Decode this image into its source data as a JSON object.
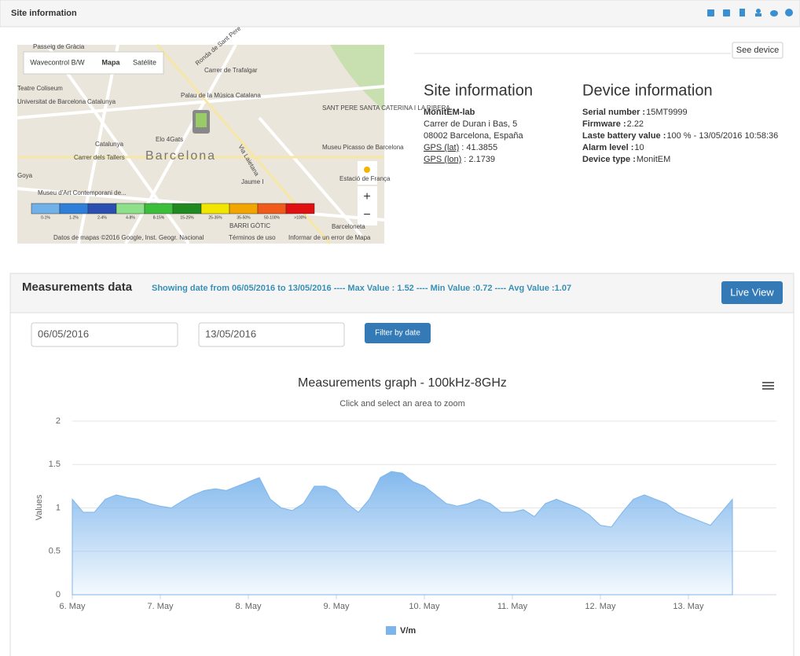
{
  "header": {
    "title": "Site information"
  },
  "map": {
    "controls": [
      "Wavecontrol B/W",
      "Mapa",
      "Satélite"
    ],
    "labels": [
      "Passeig de Gràcia",
      "Ronda de Sant Pere",
      "Carrer de Trafalgar",
      "Teatre Coliseum",
      "Universitat de Barcelona",
      "Catalunya",
      "Palau de la Música Catalana",
      "Elo 4Gats",
      "Catalunya",
      "Carrer dels Tallers",
      "Barcelona",
      "Via Laietana",
      "SANT PERE SANTA CATERINA I LA RIBERA",
      "Museu Picasso de Barcelona",
      "Goya",
      "Museu d'Art Contemporani de...",
      "Jaume I",
      "Estació de França",
      "BARRI GÒTIC",
      "Barceloneta"
    ],
    "scale": [
      "0-1%",
      "1-2%",
      "2-4%",
      "4-8%",
      "8-15%",
      "15-25%",
      "25-35%",
      "35-50%",
      "50-100%",
      ">100%"
    ],
    "attribution": "Datos de mapas ©2016 Google, Inst. Geogr. Nacional",
    "terms": "Términos de uso",
    "report": "Informar de un error de Mapa"
  },
  "see_device": "See device",
  "site": {
    "heading": "Site information",
    "name": "MonitEM-lab",
    "address": [
      "Carrer de Duran i Bas, 5",
      "08002 Barcelona, España"
    ],
    "gps": [
      {
        "label": "GPS (lat)",
        "value": ": 41.3855"
      },
      {
        "label": "GPS (lon)",
        "value": ": 2.1739"
      }
    ]
  },
  "device": {
    "heading": "Device information",
    "rows": [
      {
        "label": "Serial number :",
        "value": "15MT9999"
      },
      {
        "label": "Firmware :",
        "value": "2.22"
      },
      {
        "label": "Laste battery value :",
        "value": "100 % - 13/05/2016 10:58:36"
      },
      {
        "label": "Alarm level :",
        "value": "10"
      },
      {
        "label": "Device type :",
        "value": "MonitEM"
      }
    ]
  },
  "measurements": {
    "title": "Measurements data",
    "summary": "Showing date from 06/05/2016 to 13/05/2016 ---- Max Value : 1.52 ---- Min Value :0.72 ---- Avg Value :1.07",
    "live_view": "Live View",
    "date_from": "06/05/2016",
    "date_to": "13/05/2016",
    "filter": "Filter by date"
  },
  "chart_data": {
    "type": "area",
    "title": "Measurements graph - 100kHz-8GHz",
    "subtitle": "Click and select an area to zoom",
    "y_label": "Values",
    "x": [
      6.0,
      6.125,
      6.25,
      6.375,
      6.5,
      6.625,
      6.75,
      6.875,
      7.0,
      7.125,
      7.25,
      7.375,
      7.5,
      7.625,
      7.75,
      7.875,
      8.0,
      8.125,
      8.25,
      8.375,
      8.5,
      8.625,
      8.75,
      8.875,
      9.0,
      9.125,
      9.25,
      9.375,
      9.5,
      9.625,
      9.75,
      9.875,
      10.0,
      10.125,
      10.25,
      10.375,
      10.5,
      10.625,
      10.75,
      10.875,
      11.0,
      11.125,
      11.25,
      11.375,
      11.5,
      11.625,
      11.75,
      11.875,
      12.0,
      12.125,
      12.25,
      12.375,
      12.5,
      12.625,
      12.75,
      12.875,
      13.0,
      13.125,
      13.25,
      13.375,
      13.5
    ],
    "series": [
      {
        "name": "V/m",
        "color": "#7cb5ec",
        "values": [
          1.1,
          0.95,
          0.95,
          1.1,
          1.15,
          1.12,
          1.1,
          1.05,
          1.02,
          1.0,
          1.08,
          1.15,
          1.2,
          1.22,
          1.2,
          1.25,
          1.3,
          1.35,
          1.1,
          1.0,
          0.97,
          1.05,
          1.25,
          1.25,
          1.2,
          1.05,
          0.95,
          1.1,
          1.35,
          1.42,
          1.4,
          1.3,
          1.25,
          1.15,
          1.05,
          1.02,
          1.05,
          1.1,
          1.05,
          0.95,
          0.95,
          0.98,
          0.9,
          1.05,
          1.1,
          1.05,
          1.0,
          0.92,
          0.8,
          0.78,
          0.95,
          1.1,
          1.15,
          1.1,
          1.05,
          0.95,
          0.9,
          0.85,
          0.8,
          0.95,
          1.1
        ]
      }
    ],
    "xlim": [
      6,
      14
    ],
    "xticks": [
      {
        "value": 6,
        "label": "6. May"
      },
      {
        "value": 7,
        "label": "7. May"
      },
      {
        "value": 8,
        "label": "8. May"
      },
      {
        "value": 9,
        "label": "9. May"
      },
      {
        "value": 10,
        "label": "10. May"
      },
      {
        "value": 11,
        "label": "11. May"
      },
      {
        "value": 12,
        "label": "12. May"
      },
      {
        "value": 13,
        "label": "13. May"
      }
    ],
    "ylim": [
      0,
      2
    ],
    "yticks": [
      0,
      0.5,
      1,
      1.5,
      2
    ],
    "grid": true
  }
}
